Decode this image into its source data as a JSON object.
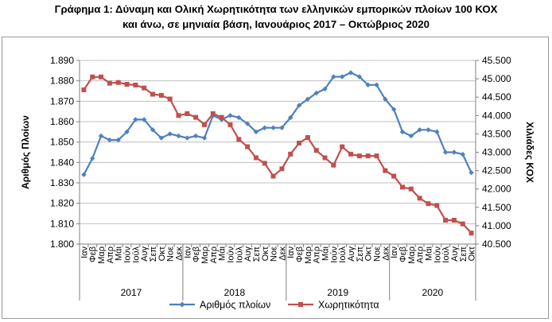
{
  "title_line1": "Γράφημα 1: Δύναμη και Ολική Χωρητικότητα των ελληνικών εμπορικών πλοίων 100 ΚΟΧ",
  "title_line2": "και άνω, σε μηνιαία βάση, Ιανουάριος 2017 – Οκτώβριος 2020",
  "colors": {
    "ships": "#4f81bd",
    "tonnage": "#c0504d",
    "grid": "#bfbfbf",
    "axis": "#808080"
  },
  "chart_data": {
    "type": "line",
    "ylabel": "Αριθμός Πλοίων",
    "y2label": "Χιλιάδες ΚΟΧ",
    "ylim": [
      1800,
      1890
    ],
    "y2lim": [
      40500,
      45500
    ],
    "yticks": [
      "1.800",
      "1.810",
      "1.820",
      "1.830",
      "1.840",
      "1.850",
      "1.860",
      "1.870",
      "1.880",
      "1.890"
    ],
    "y2ticks": [
      "40.500",
      "41.000",
      "41.500",
      "42.000",
      "42.500",
      "43.000",
      "43.500",
      "44.000",
      "44.500",
      "45.000",
      "45.500"
    ],
    "grid": true,
    "legend_position": "bottom",
    "months": [
      "Ιαν",
      "Φεβ",
      "Μαρ",
      "Απρ",
      "Μάι",
      "Ιούν",
      "Ιούλ",
      "Αυγ",
      "Σεπ",
      "Οκτ",
      "Νοε",
      "Δεκ"
    ],
    "years": [
      "2017",
      "2018",
      "2019",
      "2020"
    ],
    "series": [
      {
        "name": "Αριθμός πλοίων",
        "axis": "left",
        "values": [
          1834,
          1842,
          1853,
          1851,
          1851,
          1855,
          1861,
          1861,
          1856,
          1852,
          1854,
          1853,
          1852,
          1853,
          1852,
          1863,
          1861,
          1863,
          1862,
          1859,
          1855,
          1857,
          1857,
          1857,
          1862,
          1868,
          1871,
          1874,
          1876,
          1882,
          1882,
          1884,
          1882,
          1878,
          1878,
          1871,
          1866,
          1855,
          1853,
          1856,
          1856,
          1855,
          1845,
          1845,
          1844,
          1835
        ]
      },
      {
        "name": "Χωρητικότητα",
        "axis": "right",
        "values": [
          44.7,
          45.05,
          45.05,
          44.88,
          44.9,
          44.85,
          44.83,
          44.75,
          44.58,
          44.55,
          44.45,
          44.0,
          44.05,
          43.95,
          43.75,
          44.05,
          43.95,
          43.75,
          43.35,
          43.15,
          42.85,
          42.7,
          42.35,
          42.55,
          42.95,
          43.25,
          43.4,
          43.05,
          42.85,
          42.65,
          43.15,
          42.95,
          42.9,
          42.9,
          42.9,
          42.5,
          42.35,
          42.05,
          42.0,
          41.75,
          41.6,
          41.55,
          41.15,
          41.15,
          41.05,
          40.8
        ]
      }
    ]
  }
}
